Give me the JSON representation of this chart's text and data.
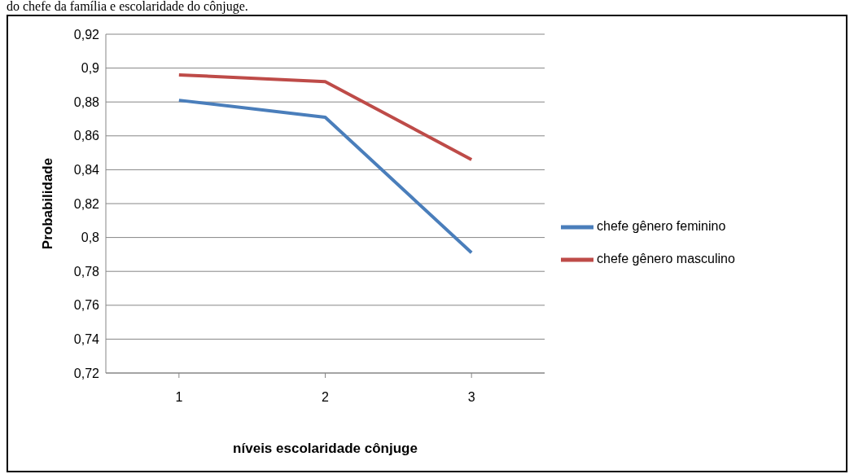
{
  "chart_data": {
    "type": "line",
    "xlabel": "níveis escolaridade cônjuge",
    "ylabel": "Probabilidade",
    "annotations": [
      "do chefe da família e escolaridade do cônjuge."
    ],
    "categories": [
      "1",
      "2",
      "3"
    ],
    "series": [
      {
        "name": "chefe gênero feminino",
        "color": "#4a7ebb",
        "values": [
          0.881,
          0.871,
          0.791
        ]
      },
      {
        "name": "chefe gênero masculino",
        "color": "#be4b48",
        "values": [
          0.896,
          0.892,
          0.846
        ]
      }
    ],
    "ylim": [
      0.72,
      0.92
    ],
    "yticks": [
      {
        "value": 0.72,
        "label": "0,72"
      },
      {
        "value": 0.74,
        "label": "0,74"
      },
      {
        "value": 0.76,
        "label": "0,76"
      },
      {
        "value": 0.78,
        "label": "0,78"
      },
      {
        "value": 0.8,
        "label": "0,8"
      },
      {
        "value": 0.82,
        "label": "0,82"
      },
      {
        "value": 0.84,
        "label": "0,84"
      },
      {
        "value": 0.86,
        "label": "0,86"
      },
      {
        "value": 0.88,
        "label": "0,88"
      },
      {
        "value": 0.9,
        "label": "0,9"
      },
      {
        "value": 0.92,
        "label": "0,92"
      }
    ],
    "grid": "y",
    "legend": "right",
    "marker": "none",
    "line_style": "solid"
  }
}
